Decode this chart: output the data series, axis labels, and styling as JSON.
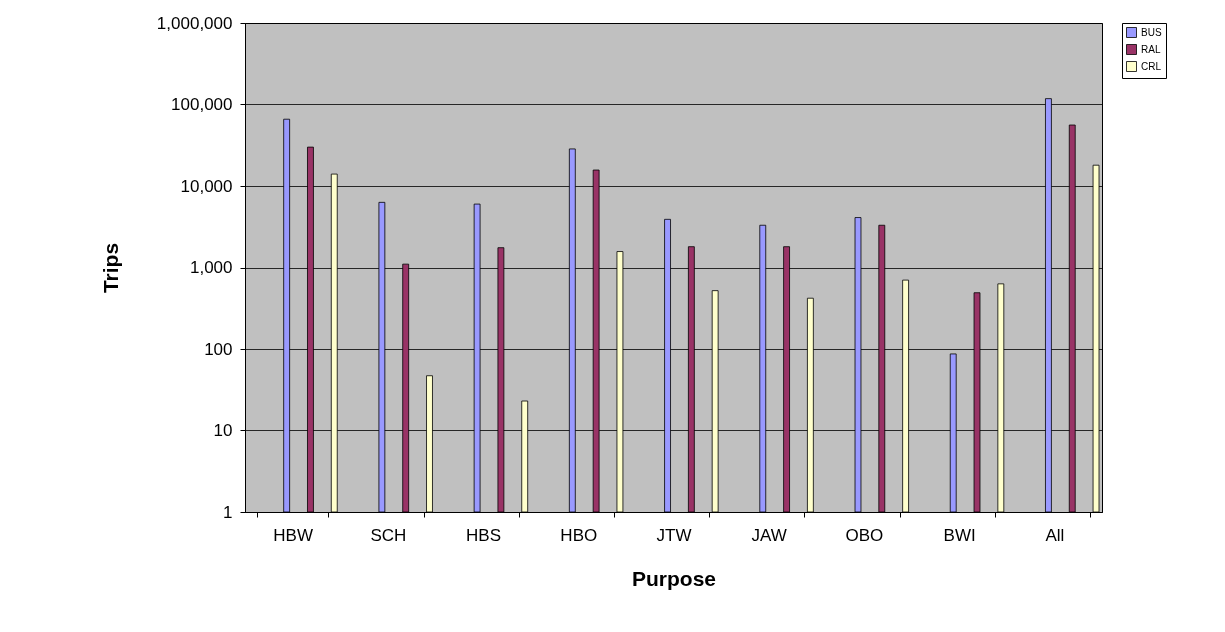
{
  "chart_data": {
    "type": "bar",
    "xlabel": "Purpose",
    "ylabel": "Trips",
    "categories": [
      "HBW",
      "SCH",
      "HBS",
      "HBO",
      "JTW",
      "JAW",
      "OBO",
      "BWI",
      "All"
    ],
    "series": [
      {
        "name": "BUS",
        "color": "#9999ff",
        "values": [
          66000,
          6300,
          6000,
          28500,
          3900,
          3300,
          4100,
          87,
          118000
        ]
      },
      {
        "name": "RAL",
        "color": "#993366",
        "values": [
          30000,
          1100,
          1750,
          15700,
          1800,
          1800,
          3300,
          490,
          56000
        ]
      },
      {
        "name": "CRL",
        "color": "#ffffcc",
        "values": [
          14000,
          47,
          23,
          1570,
          520,
          420,
          700,
          630,
          18000
        ]
      }
    ],
    "log": true,
    "ylim": [
      1,
      1000000
    ],
    "yticks": [
      1,
      10,
      100,
      {
        "value": 1000,
        "label": "1,000"
      },
      {
        "value": 10000,
        "label": "10,000"
      },
      {
        "value": 100000,
        "label": "100,000"
      },
      {
        "value": 1000000,
        "label": "1,000,000"
      }
    ],
    "grid": "y",
    "legend": "right"
  }
}
